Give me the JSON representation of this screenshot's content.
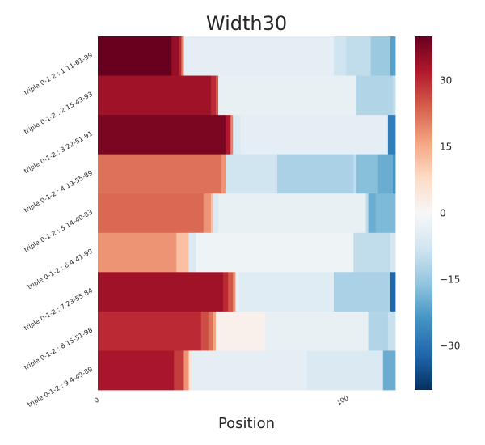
{
  "chart_data": {
    "type": "heatmap",
    "title": "Width30",
    "xlabel": "Position",
    "ylabel": "",
    "xlim": [
      0,
      121
    ],
    "x_ticks": [
      "0",
      "100"
    ],
    "x_tick_values": [
      0,
      100
    ],
    "colorbar": {
      "colormap": "RdBu_r",
      "range": [
        -40,
        40
      ],
      "ticks": [
        "30",
        "15",
        "0",
        "−15",
        "−30"
      ],
      "tick_values": [
        30,
        15,
        0,
        -15,
        -30
      ]
    },
    "rows": [
      {
        "label": "triple 0-1-2 : 1 11-61-99",
        "segments": [
          {
            "start": 0,
            "end": 30,
            "value": 40
          },
          {
            "start": 30,
            "end": 33,
            "value": 35
          },
          {
            "start": 33,
            "end": 34,
            "value": 30
          },
          {
            "start": 34,
            "end": 35,
            "value": 20
          },
          {
            "start": 35,
            "end": 96,
            "value": -4
          },
          {
            "start": 96,
            "end": 101,
            "value": -8
          },
          {
            "start": 101,
            "end": 111,
            "value": -10
          },
          {
            "start": 111,
            "end": 119,
            "value": -15
          },
          {
            "start": 119,
            "end": 121,
            "value": -22
          }
        ]
      },
      {
        "label": "triple 0-1-2 : 2 15-43-93",
        "segments": [
          {
            "start": 0,
            "end": 46,
            "value": 34
          },
          {
            "start": 46,
            "end": 48,
            "value": 30
          },
          {
            "start": 48,
            "end": 49,
            "value": 25
          },
          {
            "start": 49,
            "end": 105,
            "value": -3
          },
          {
            "start": 105,
            "end": 120,
            "value": -12
          },
          {
            "start": 120,
            "end": 121,
            "value": -10
          }
        ]
      },
      {
        "label": "triple 0-1-2 : 3 22-51-91",
        "segments": [
          {
            "start": 0,
            "end": 52,
            "value": 38
          },
          {
            "start": 52,
            "end": 54,
            "value": 32
          },
          {
            "start": 54,
            "end": 55,
            "value": 20
          },
          {
            "start": 55,
            "end": 58,
            "value": -6
          },
          {
            "start": 58,
            "end": 118,
            "value": -4
          },
          {
            "start": 118,
            "end": 121,
            "value": -28
          }
        ]
      },
      {
        "label": "triple 0-1-2 : 4 19-55-89",
        "segments": [
          {
            "start": 0,
            "end": 50,
            "value": 22
          },
          {
            "start": 50,
            "end": 52,
            "value": 18
          },
          {
            "start": 52,
            "end": 73,
            "value": -8
          },
          {
            "start": 73,
            "end": 104,
            "value": -13
          },
          {
            "start": 104,
            "end": 105,
            "value": -10
          },
          {
            "start": 105,
            "end": 114,
            "value": -17
          },
          {
            "start": 114,
            "end": 120,
            "value": -20
          },
          {
            "start": 120,
            "end": 121,
            "value": -24
          }
        ]
      },
      {
        "label": "triple 0-1-2 : 5 14-40-83",
        "segments": [
          {
            "start": 0,
            "end": 43,
            "value": 23
          },
          {
            "start": 43,
            "end": 46,
            "value": 18
          },
          {
            "start": 46,
            "end": 47,
            "value": 12
          },
          {
            "start": 47,
            "end": 49,
            "value": -6
          },
          {
            "start": 49,
            "end": 109,
            "value": -3
          },
          {
            "start": 109,
            "end": 110,
            "value": -10
          },
          {
            "start": 110,
            "end": 113,
            "value": -20
          },
          {
            "start": 113,
            "end": 121,
            "value": -18
          }
        ]
      },
      {
        "label": "triple 0-1-2 : 6 4-41-99",
        "segments": [
          {
            "start": 0,
            "end": 32,
            "value": 18
          },
          {
            "start": 32,
            "end": 37,
            "value": 12
          },
          {
            "start": 37,
            "end": 40,
            "value": -6
          },
          {
            "start": 40,
            "end": 104,
            "value": -2
          },
          {
            "start": 104,
            "end": 119,
            "value": -10
          },
          {
            "start": 119,
            "end": 121,
            "value": -7
          }
        ]
      },
      {
        "label": "triple 0-1-2 : 7 23-55-84",
        "segments": [
          {
            "start": 0,
            "end": 51,
            "value": 34
          },
          {
            "start": 51,
            "end": 53,
            "value": 30
          },
          {
            "start": 53,
            "end": 55,
            "value": 25
          },
          {
            "start": 55,
            "end": 56,
            "value": 18
          },
          {
            "start": 56,
            "end": 57,
            "value": -4
          },
          {
            "start": 57,
            "end": 96,
            "value": -5
          },
          {
            "start": 96,
            "end": 119,
            "value": -13
          },
          {
            "start": 119,
            "end": 121,
            "value": -32
          }
        ]
      },
      {
        "label": "triple 0-1-2 : 8 15-51-98",
        "segments": [
          {
            "start": 0,
            "end": 42,
            "value": 30
          },
          {
            "start": 42,
            "end": 45,
            "value": 26
          },
          {
            "start": 45,
            "end": 47,
            "value": 22
          },
          {
            "start": 47,
            "end": 48,
            "value": 16
          },
          {
            "start": 48,
            "end": 68,
            "value": 2
          },
          {
            "start": 68,
            "end": 110,
            "value": -3
          },
          {
            "start": 110,
            "end": 118,
            "value": -12
          },
          {
            "start": 118,
            "end": 121,
            "value": -9
          }
        ]
      },
      {
        "label": "triple 0-1-2 : 9 4-49-89",
        "segments": [
          {
            "start": 0,
            "end": 31,
            "value": 33
          },
          {
            "start": 31,
            "end": 35,
            "value": 28
          },
          {
            "start": 35,
            "end": 37,
            "value": 18
          },
          {
            "start": 37,
            "end": 38,
            "value": 6
          },
          {
            "start": 38,
            "end": 85,
            "value": -4
          },
          {
            "start": 85,
            "end": 116,
            "value": -6
          },
          {
            "start": 116,
            "end": 121,
            "value": -20
          }
        ]
      }
    ]
  }
}
